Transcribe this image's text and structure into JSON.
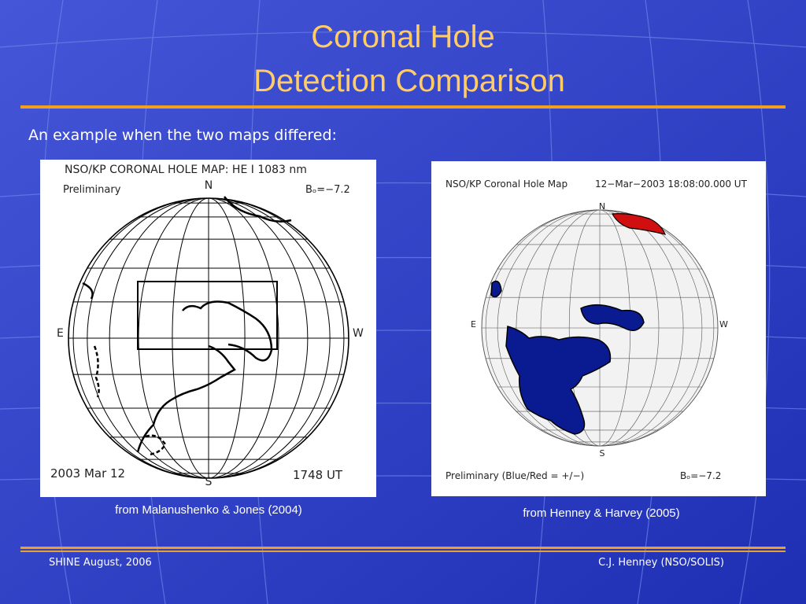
{
  "slide": {
    "title": [
      "Coronal Hole",
      "Detection Comparison"
    ],
    "subtitle": "An example when the two maps differed:",
    "figures": [
      {
        "header": "NSO/KP CORONAL HOLE MAP: HE I 1083 nm",
        "status": "Preliminary",
        "b0": "Bₒ=−7.2",
        "north": "N",
        "south": "S",
        "east": "E",
        "west": "W",
        "date": "2003 Mar 12",
        "time": "1748 UT",
        "caption": "from Malanushenko & Jones (2004)"
      },
      {
        "header": "NSO/KP Coronal Hole Map",
        "timestamp": "12−Mar−2003 18:08:00.000 UT",
        "north": "N",
        "south": "S",
        "east": "E",
        "west": "W",
        "status": "Preliminary (Blue/Red = +/−)",
        "b0": "Bₒ=−7.2",
        "caption": "from Henney & Harvey (2005)"
      }
    ],
    "footer": {
      "left": "SHINE August, 2006",
      "right": "C.J. Henney (NSO/SOLIS)"
    }
  }
}
